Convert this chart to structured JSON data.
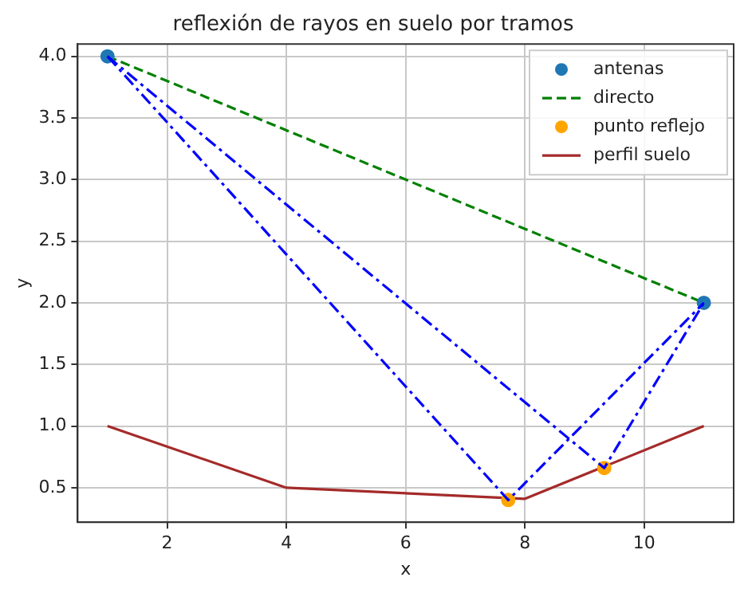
{
  "chart_data": {
    "type": "line",
    "title": "reflexión de rayos en suelo por tramos",
    "xlabel": "x",
    "ylabel": "y",
    "xlim": [
      0.5,
      11.5
    ],
    "xticks": [
      2,
      4,
      6,
      8,
      10
    ],
    "ylim": [
      0.22,
      4.1
    ],
    "yticks": [
      {
        "value": 0.5,
        "label": "0.5"
      },
      {
        "value": 1,
        "label": "1.0"
      },
      {
        "value": 1.5,
        "label": "1.5"
      },
      {
        "value": 2,
        "label": "2.0"
      },
      {
        "value": 2.5,
        "label": "2.5"
      },
      {
        "value": 3,
        "label": "3.0"
      },
      {
        "value": 3.5,
        "label": "3.5"
      },
      {
        "value": 4,
        "label": "4.0"
      }
    ],
    "grid": true,
    "legend": "top right",
    "series": [
      {
        "color": "#0000ff",
        "line_style": "dashdot",
        "marker": "none",
        "x": [
          1,
          7.72,
          11
        ],
        "values": [
          4,
          0.4,
          2
        ]
      },
      {
        "color": "#0000ff",
        "line_style": "dashdot",
        "marker": "none",
        "x": [
          1,
          9.33,
          11
        ],
        "values": [
          4,
          0.66,
          2
        ]
      },
      {
        "type": "scatter",
        "name": "antenas",
        "color": "#1f77b4",
        "marker": "circle",
        "x": [
          1,
          11
        ],
        "values": [
          4,
          2
        ]
      },
      {
        "name": "directo",
        "color": "#008000",
        "line_style": "dashed",
        "marker": "none",
        "x": [
          1,
          11
        ],
        "values": [
          4,
          2
        ]
      },
      {
        "type": "scatter",
        "name": "punto reflejo",
        "color": "#ffa500",
        "marker": "circle",
        "x": [
          7.72,
          9.33
        ],
        "values": [
          0.4,
          0.66
        ]
      },
      {
        "name": "perfil suelo",
        "color": "#a52a2a",
        "line_style": "solid",
        "marker": "none",
        "x": [
          1,
          4,
          8,
          11
        ],
        "values": [
          1,
          0.5,
          0.41,
          1
        ]
      }
    ]
  }
}
